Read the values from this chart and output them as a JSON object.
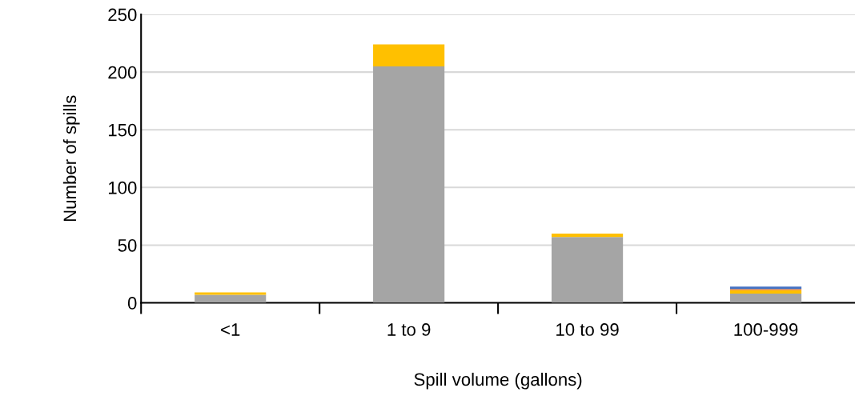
{
  "chart_data": {
    "type": "bar",
    "stacked": true,
    "xlabel": "Spill volume (gallons)",
    "ylabel": "Number of spills",
    "categories": [
      "<1",
      "1 to 9",
      "10 to 99",
      "100-999"
    ],
    "series": [
      {
        "color": "#a5a5a5",
        "values": [
          7,
          205,
          57,
          8
        ]
      },
      {
        "color": "#ffc000",
        "values": [
          2,
          19,
          3,
          3
        ]
      },
      {
        "color": "#ed7d31",
        "values": [
          0,
          0,
          0,
          1
        ]
      },
      {
        "color": "#4472c4",
        "values": [
          0,
          0,
          0,
          2
        ]
      }
    ],
    "ylim": [
      0,
      250
    ],
    "yticks": [
      0,
      50,
      100,
      150,
      200,
      250
    ],
    "grid": "y",
    "legend": false
  }
}
